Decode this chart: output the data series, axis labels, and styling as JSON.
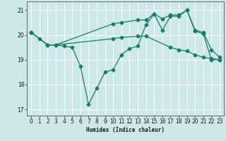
{
  "xlabel": "Humidex (Indice chaleur)",
  "bg_color": "#cce8e8",
  "grid_color": "#ffffff",
  "line_color": "#1a7a6a",
  "xlim": [
    -0.5,
    23.5
  ],
  "ylim": [
    16.75,
    21.35
  ],
  "yticks": [
    17,
    18,
    19,
    20,
    21
  ],
  "xticks": [
    0,
    1,
    2,
    3,
    4,
    5,
    6,
    7,
    8,
    9,
    10,
    11,
    12,
    13,
    14,
    15,
    16,
    17,
    18,
    19,
    20,
    21,
    22,
    23
  ],
  "s1_x": [
    0,
    1,
    2,
    3,
    4,
    5,
    6,
    7,
    8,
    9,
    10,
    11,
    12,
    13,
    14,
    15,
    16,
    17,
    18,
    19,
    20,
    21,
    22,
    23
  ],
  "s1_y": [
    20.1,
    19.85,
    19.6,
    19.6,
    19.55,
    19.5,
    18.75,
    17.2,
    17.85,
    18.5,
    18.6,
    19.2,
    19.45,
    19.55,
    20.4,
    20.85,
    20.2,
    20.75,
    20.75,
    21.0,
    20.15,
    20.05,
    19.0,
    19.0
  ],
  "s2_x": [
    0,
    2,
    3,
    10,
    11,
    13,
    14,
    17,
    18,
    19,
    20,
    21,
    22,
    23
  ],
  "s2_y": [
    20.1,
    19.6,
    19.6,
    19.85,
    19.9,
    19.95,
    19.95,
    19.5,
    19.4,
    19.35,
    19.2,
    19.1,
    19.05,
    19.0
  ],
  "s3_x": [
    0,
    2,
    3,
    10,
    11,
    13,
    14,
    15,
    16,
    17,
    18,
    19,
    20,
    21,
    22,
    23
  ],
  "s3_y": [
    20.1,
    19.6,
    19.6,
    20.45,
    20.5,
    20.6,
    20.6,
    20.85,
    20.65,
    20.8,
    20.8,
    21.0,
    20.2,
    20.1,
    19.4,
    19.1
  ],
  "ms": 2.5,
  "lw": 0.9,
  "tick_fs": 5.5
}
